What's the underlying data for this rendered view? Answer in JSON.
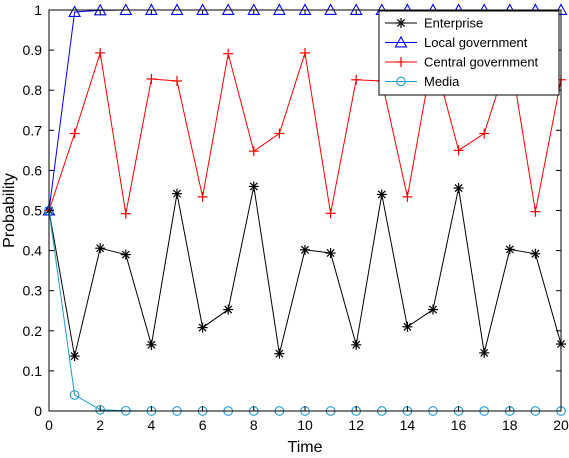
{
  "chart_data": {
    "type": "line",
    "xlabel": "Time",
    "ylabel": "Probability",
    "xlim": [
      0,
      20
    ],
    "ylim": [
      0,
      1
    ],
    "xticks": [
      "0",
      "2",
      "4",
      "6",
      "8",
      "10",
      "12",
      "14",
      "16",
      "18",
      "20"
    ],
    "yticks": [
      "0",
      "0.1",
      "0.2",
      "0.3",
      "0.4",
      "0.5",
      "0.6",
      "0.7",
      "0.8",
      "0.9",
      "1"
    ],
    "legend_position": "top-right",
    "grid": false,
    "x": [
      0,
      1,
      2,
      3,
      4,
      5,
      6,
      7,
      8,
      9,
      10,
      11,
      12,
      13,
      14,
      15,
      16,
      17,
      18,
      19,
      20
    ],
    "series": [
      {
        "name": "Enterprise",
        "color": "#000000",
        "marker": "asterisk",
        "values": [
          0.5,
          0.137,
          0.406,
          0.39,
          0.165,
          0.542,
          0.208,
          0.253,
          0.56,
          0.143,
          0.402,
          0.394,
          0.165,
          0.54,
          0.21,
          0.253,
          0.556,
          0.145,
          0.403,
          0.392,
          0.167
        ]
      },
      {
        "name": "Local government",
        "color": "#0000ff",
        "marker": "triangle",
        "values": [
          0.5,
          0.995,
          0.999,
          1,
          1,
          1,
          1,
          1,
          1,
          1,
          1,
          1,
          1,
          1,
          1,
          1,
          1,
          1,
          1,
          1,
          1
        ]
      },
      {
        "name": "Central government",
        "color": "#ff0000",
        "marker": "plus",
        "values": [
          0.5,
          0.692,
          0.893,
          0.492,
          0.828,
          0.823,
          0.534,
          0.891,
          0.648,
          0.692,
          0.893,
          0.493,
          0.826,
          0.823,
          0.534,
          0.891,
          0.65,
          0.692,
          0.893,
          0.497,
          0.826
        ]
      },
      {
        "name": "Media",
        "color": "#1a9cd0",
        "marker": "circle",
        "values": [
          0.5,
          0.04,
          0.003,
          0.0005,
          0,
          0,
          0,
          0,
          0,
          0,
          0,
          0,
          0,
          0,
          0,
          0,
          0,
          0,
          0,
          0,
          0
        ]
      }
    ]
  }
}
